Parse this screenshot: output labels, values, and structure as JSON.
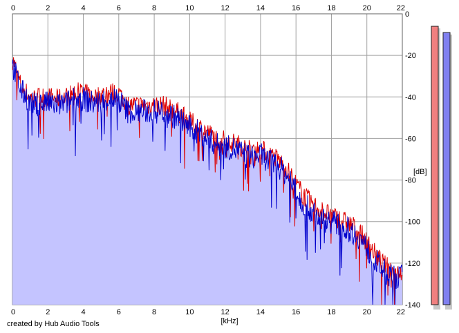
{
  "credit": "created by Hub Audio Tools",
  "chart_data": {
    "type": "area",
    "xlabel": "[kHz]",
    "ylabel": "[dB]",
    "xlim": [
      0,
      22
    ],
    "ylim": [
      -140,
      0
    ],
    "x_ticks": [
      0,
      2,
      4,
      6,
      8,
      10,
      12,
      14,
      16,
      18,
      20,
      22
    ],
    "y_ticks": [
      0,
      -20,
      -40,
      -60,
      -80,
      -100,
      -120,
      -140
    ],
    "grid": true,
    "legend": "none",
    "fill_color": "#c4c4ff",
    "series": [
      {
        "color": "#dd0000",
        "x": [
          0,
          0.1,
          0.3,
          0.5,
          0.8,
          1.0,
          1.2,
          1.5,
          2.0,
          2.5,
          3.0,
          3.5,
          4.0,
          4.5,
          5.0,
          5.5,
          6.0,
          6.5,
          7.0,
          7.5,
          8.0,
          8.5,
          9.0,
          9.5,
          10.0,
          10.5,
          11.0,
          11.5,
          12.0,
          12.5,
          13.0,
          13.5,
          14.0,
          14.5,
          15.0,
          15.5,
          16.0,
          16.5,
          17.0,
          17.5,
          18.0,
          18.5,
          19.0,
          19.5,
          20.0,
          20.5,
          21.0,
          21.5,
          22.0
        ],
        "y": [
          -22,
          -24,
          -30,
          -35,
          -38,
          -40,
          -41,
          -40,
          -40,
          -41,
          -40,
          -38,
          -38,
          -40,
          -39,
          -38,
          -38,
          -44,
          -44,
          -44,
          -44,
          -44,
          -46,
          -48,
          -52,
          -54,
          -57,
          -60,
          -61,
          -62,
          -64,
          -66,
          -65,
          -68,
          -70,
          -75,
          -82,
          -88,
          -92,
          -95,
          -97,
          -99,
          -101,
          -104,
          -110,
          -116,
          -121,
          -124,
          -124
        ]
      },
      {
        "color": "#0000cc",
        "x": [
          0,
          0.1,
          0.3,
          0.5,
          0.8,
          1.0,
          1.2,
          1.5,
          2.0,
          2.5,
          3.0,
          3.5,
          4.0,
          4.5,
          5.0,
          5.5,
          6.0,
          6.5,
          7.0,
          7.5,
          8.0,
          8.5,
          9.0,
          9.5,
          10.0,
          10.5,
          11.0,
          11.5,
          12.0,
          12.5,
          13.0,
          13.5,
          14.0,
          14.5,
          15.0,
          15.5,
          16.0,
          16.5,
          17.0,
          17.5,
          18.0,
          18.5,
          19.0,
          19.5,
          20.0,
          20.5,
          21.0,
          21.5,
          22.0
        ],
        "y": [
          -25,
          -27,
          -32,
          -37,
          -40,
          -43,
          -44,
          -43,
          -43,
          -44,
          -43,
          -41,
          -41,
          -43,
          -42,
          -41,
          -41,
          -47,
          -47,
          -47,
          -47,
          -47,
          -49,
          -51,
          -55,
          -57,
          -60,
          -63,
          -64,
          -65,
          -67,
          -69,
          -68,
          -71,
          -73,
          -78,
          -86,
          -92,
          -96,
          -99,
          -100,
          -102,
          -104,
          -107,
          -113,
          -119,
          -124,
          -127,
          -126
        ]
      }
    ],
    "level_meters": [
      {
        "color": "#f08080",
        "level_db": -6
      },
      {
        "color": "#8080f0",
        "level_db": -9
      }
    ]
  }
}
